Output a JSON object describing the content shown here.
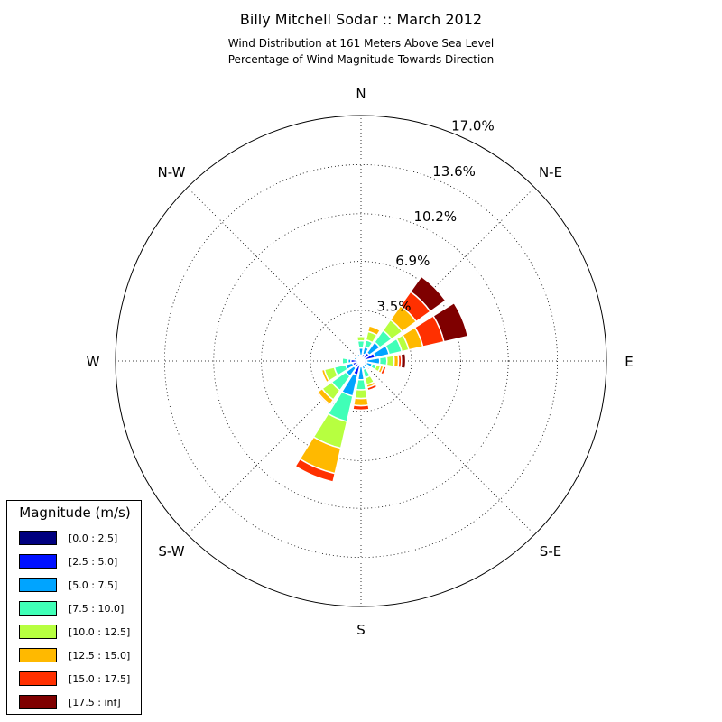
{
  "title": "Billy Mitchell Sodar :: March 2012",
  "subtitle_1": "Wind Distribution at 161 Meters Above Sea Level",
  "subtitle_2": "Percentage of Wind Magnitude Towards Direction",
  "chart_data": {
    "type": "windrose",
    "radial_unit": "%",
    "radial_ticks": [
      "3.5%",
      "6.9%",
      "10.2%",
      "13.6%",
      "17.0%"
    ],
    "radial_tick_values": [
      3.5,
      6.9,
      10.2,
      13.6,
      17.0
    ],
    "rmax": 17.0,
    "directions": [
      "N",
      "N-E",
      "E",
      "S-E",
      "S",
      "S-W",
      "W",
      "N-W"
    ],
    "grid": true,
    "legend_position": "lower-left",
    "legend_title": "Magnitude (m/s)",
    "bins": [
      "[0.0 : 2.5]",
      "[2.5 : 5.0]",
      "[5.0 : 7.5]",
      "[7.5 : 10.0]",
      "[10.0 : 12.5]",
      "[12.5 : 15.0]",
      "[15.0 : 17.5]",
      "[17.5 : inf]"
    ],
    "bin_colors": [
      "#00007f",
      "#0010ff",
      "#00a4ff",
      "#40ffb7",
      "#b7ff40",
      "#ffb900",
      "#ff3000",
      "#7f0000"
    ],
    "sectors": [
      {
        "direction_deg": 0.0,
        "cumulative": [
          0.1,
          0.4,
          0.9,
          1.4,
          1.7,
          1.7,
          1.7,
          1.7
        ]
      },
      {
        "direction_deg": 22.5,
        "cumulative": [
          0.1,
          0.5,
          1.0,
          1.5,
          2.1,
          2.5,
          2.5,
          2.5
        ]
      },
      {
        "direction_deg": 45.0,
        "cumulative": [
          0.2,
          0.7,
          1.6,
          2.6,
          3.5,
          4.7,
          5.9,
          7.2
        ]
      },
      {
        "direction_deg": 67.5,
        "cumulative": [
          0.2,
          1.0,
          2.0,
          2.9,
          3.4,
          4.4,
          5.9,
          7.6
        ]
      },
      {
        "direction_deg": 90.0,
        "cumulative": [
          0.1,
          0.4,
          1.3,
          1.8,
          2.3,
          2.6,
          2.8,
          3.1
        ]
      },
      {
        "direction_deg": 112.5,
        "cumulative": [
          0.1,
          0.4,
          0.8,
          1.1,
          1.4,
          1.6,
          1.8,
          1.8
        ]
      },
      {
        "direction_deg": 135.0,
        "cumulative": [
          0.1,
          0.3,
          0.6,
          0.7,
          0.7,
          0.7,
          0.8,
          0.8
        ]
      },
      {
        "direction_deg": 157.5,
        "cumulative": [
          0.1,
          0.3,
          0.6,
          1.2,
          1.7,
          1.9,
          2.1,
          2.1
        ]
      },
      {
        "direction_deg": 180.0,
        "cumulative": [
          0.1,
          0.4,
          1.3,
          2.0,
          2.6,
          3.1,
          3.4,
          3.4
        ]
      },
      {
        "direction_deg": 202.5,
        "cumulative": [
          0.2,
          1.0,
          2.5,
          4.3,
          6.2,
          8.0,
          8.6,
          8.6
        ]
      },
      {
        "direction_deg": 225.0,
        "cumulative": [
          0.2,
          0.6,
          1.3,
          2.5,
          3.3,
          3.7,
          3.8,
          3.8
        ]
      },
      {
        "direction_deg": 247.5,
        "cumulative": [
          0.2,
          0.6,
          1.1,
          1.9,
          2.6,
          2.8,
          2.8,
          2.8
        ]
      },
      {
        "direction_deg": 270.0,
        "cumulative": [
          0.1,
          0.7,
          0.9,
          1.3,
          1.3,
          1.3,
          1.3,
          1.3
        ]
      },
      {
        "direction_deg": 292.5,
        "cumulative": [
          0.1,
          0.3,
          0.5,
          0.5,
          0.5,
          0.5,
          0.5,
          0.5
        ]
      },
      {
        "direction_deg": 315.0,
        "cumulative": [
          0.1,
          0.3,
          0.4,
          0.4,
          0.4,
          0.4,
          0.4,
          0.4
        ]
      },
      {
        "direction_deg": 337.5,
        "cumulative": [
          0.1,
          0.3,
          0.5,
          0.5,
          0.5,
          0.5,
          0.5,
          0.5
        ]
      }
    ]
  }
}
